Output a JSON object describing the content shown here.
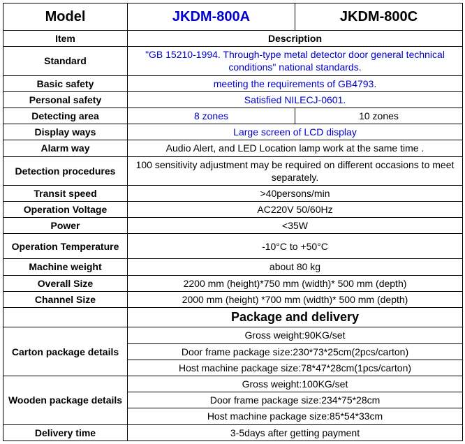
{
  "header": {
    "model_label": "Model",
    "model_a": "JKDM-800A",
    "model_c": "JKDM-800C"
  },
  "rows": {
    "item_label": "Item",
    "item_value": "Description",
    "standard_label": "Standard",
    "standard_value": "\"GB 15210-1994. Through-type metal detector door general technical conditions\" national standards.",
    "basic_safety_label": "Basic safety",
    "basic_safety_value": "meeting the requirements of GB4793.",
    "personal_safety_label": "Personal safety",
    "personal_safety_value": "Satisfied NILECJ-0601.",
    "detecting_area_label": "Detecting area",
    "detecting_area_a": "8 zones",
    "detecting_area_c": "10 zones",
    "display_ways_label": "Display ways",
    "display_ways_value": "Large screen of LCD display",
    "alarm_way_label": "Alarm way",
    "alarm_way_value": "Audio Alert, and LED Location lamp work at the same time .",
    "detection_proc_label": "Detection procedures",
    "detection_proc_value": "100 sensitivity adjustment may be required on different occasions to meet separately.",
    "transit_speed_label": "Transit speed",
    "transit_speed_value": ">40persons/min",
    "op_voltage_label": "Operation Voltage",
    "op_voltage_value": "AC220V 50/60Hz",
    "power_label": "Power",
    "power_value": "<35W",
    "op_temp_label": "Operation Temperature",
    "op_temp_value": "-10°C to +50°C",
    "machine_weight_label": "Machine weight",
    "machine_weight_value": "about 80 kg",
    "overall_size_label": "Overall Size",
    "overall_size_value": "2200 mm (height)*750 mm (width)* 500 mm (depth)",
    "channel_size_label": "Channel Size",
    "channel_size_value": "2000 mm (height) *700 mm (width)* 500 mm (depth)",
    "package_section": "Package and delivery",
    "carton_label": "Carton package details",
    "carton_r1": "Gross weight:90KG/set",
    "carton_r2": "Door frame package size:230*73*25cm(2pcs/carton)",
    "carton_r3": "Host machine package size:78*47*28cm(1pcs/carton)",
    "wooden_label": "Wooden package details",
    "wooden_r1": "Gross weight:100KG/set",
    "wooden_r2": "Door frame package size:234*75*28cm",
    "wooden_r3": "Host machine package size:85*54*33cm",
    "delivery_label": "Delivery time",
    "delivery_value": "3-5days after getting payment"
  },
  "colors": {
    "blue": "#0000cc",
    "black": "#000000"
  }
}
